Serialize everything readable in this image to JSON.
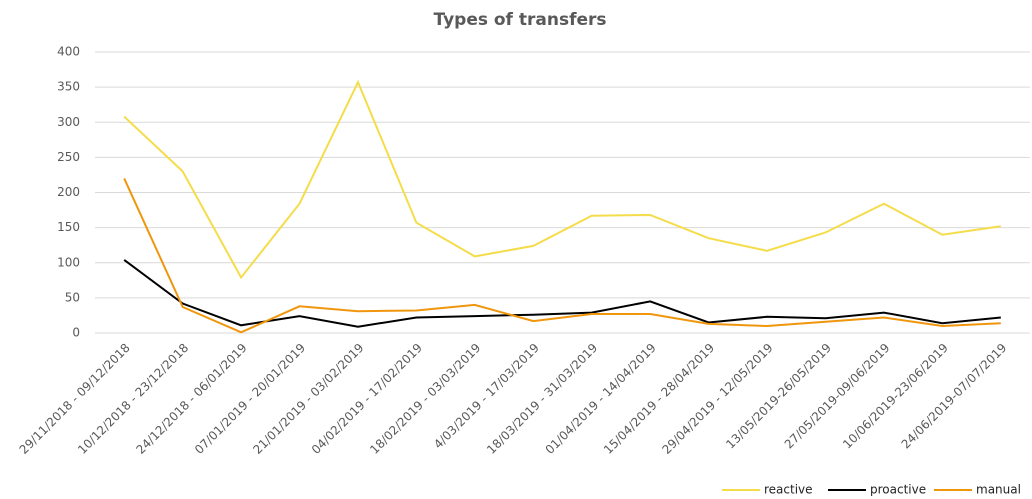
{
  "chart_data": {
    "type": "line",
    "title": "Types of transfers",
    "categories": [
      "29/11/2018 - 09/12/2018",
      "10/12/2018 - 23/12/2018",
      "24/12/2018 - 06/01/2019",
      "07/01/2019 - 20/01/2019",
      "21/01/2019 - 03/02/2019",
      "04/02/2019 - 17/02/2019",
      "18/02/2019 - 03/03/2019",
      "4/03/2019 - 17/03/2019",
      "18/03/2019 - 31/03/2019",
      "01/04/2019 - 14/04/2019",
      "15/04/2019 - 28/04/2019",
      "29/04/2019 - 12/05/2019",
      "13/05/2019-26/05/2019",
      "27/05/2019-09/06/2019",
      "10/06/2019-23/06/2019",
      "24/06/2019-07/07/2019"
    ],
    "series": [
      {
        "name": "reactive",
        "color": "#f5dc4a",
        "values": [
          308,
          230,
          79,
          184,
          357,
          157,
          109,
          124,
          167,
          168,
          135,
          117,
          143,
          184,
          140,
          152
        ]
      },
      {
        "name": "proactive",
        "color": "#000000",
        "values": [
          104,
          42,
          11,
          24,
          9,
          22,
          24,
          26,
          29,
          45,
          15,
          23,
          21,
          29,
          14,
          22
        ]
      },
      {
        "name": "manual",
        "color": "#f0960c",
        "values": [
          220,
          37,
          1,
          38,
          31,
          32,
          40,
          17,
          27,
          27,
          13,
          10,
          16,
          22,
          10,
          14
        ]
      }
    ],
    "ylim": [
      0,
      400
    ],
    "yticks": [
      0,
      50,
      100,
      150,
      200,
      250,
      300,
      350,
      400
    ],
    "grid": true
  }
}
